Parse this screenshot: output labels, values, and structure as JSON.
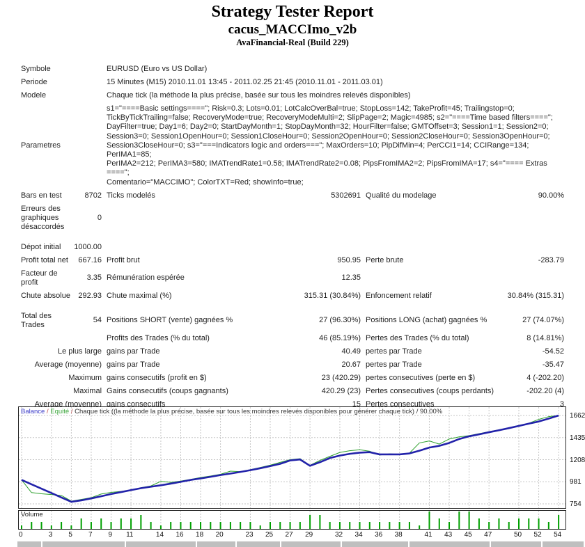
{
  "header": {
    "title": "Strategy Tester Report",
    "subtitle": "cacus_MACCImo_v2b",
    "build": "AvaFinancial-Real (Build 229)"
  },
  "stats": {
    "rows": [
      {
        "cells": [
          {
            "t": "Symbole",
            "cs": 2
          },
          {
            "t": "EURUSD (Euro vs US Dollar)",
            "cs": 4
          }
        ]
      },
      {
        "cells": [
          {
            "t": "Periode",
            "cs": 2
          },
          {
            "t": "15 Minutes (M15) 2010.11.01 13:45 - 2011.02.25 21:45 (2010.11.01 - 2011.03.01)",
            "cs": 4
          }
        ]
      },
      {
        "cells": [
          {
            "t": "Modele",
            "cs": 2
          },
          {
            "t": "Chaque tick (la méthode la plus précise, basée sur tous les moindres relevés disponibles)",
            "cs": 4
          }
        ]
      },
      {
        "cells": [
          {
            "t": "Parametres",
            "cs": 2
          },
          {
            "cs": 4,
            "lines": [
              "s1=\"====Basic settings====\"; Risk=0.3; Lots=0.01; LotCalcOverBal=true; StopLoss=142; TakeProfit=45; Trailingstop=0;",
              "TickByTickTrailing=false; RecoveryMode=true; RecoveryModeMulti=2; SlipPage=2; Magic=4985; s2=\"====Time based filters====\";",
              "DayFilter=true; Day1=6; Day2=0; StartDayMonth=1; StopDayMonth=32; HourFilter=false; GMTOffset=3; Session1=1; Session2=0;",
              "Session3=0; Session1OpenHour=0; Session1CloseHour=0; Session2OpenHour=0; Session2CloseHour=0; Session3OpenHour=0;",
              "Session3CloseHour=0; s3=\"===Indicators logic and orders===\"; MaxOrders=10; PipDifMin=4; PerCCI1=14; CCIRange=134; PerIMA1=85;",
              "PerIMA2=212; PerIMA3=580; IMATrendRate1=0.58; IMATrendRate2=0.08; PipsFromIMA2=2; PipsFromIMA=17; s4=\"==== Extras ====\";",
              "Comentario=\"MACCIMO\"; ColorTXT=Red; showInfo=true;"
            ]
          }
        ]
      },
      {
        "cells": [
          {
            "t": "Bars en test"
          },
          {
            "t": "8702",
            "r": 1
          },
          {
            "t": "Ticks modelés"
          },
          {
            "t": "5302691",
            "r": 1
          },
          {
            "t": "Qualité du modelage"
          },
          {
            "t": "90.00%",
            "r": 1
          }
        ]
      },
      {
        "cells": [
          {
            "t": "Erreurs des graphiques désaccordés"
          },
          {
            "t": "0",
            "r": 1
          },
          {
            "t": "",
            "cs": 4
          }
        ]
      },
      {
        "gap": true
      },
      {
        "cells": [
          {
            "t": "Dépot initial"
          },
          {
            "t": "1000.00",
            "r": 1
          },
          {
            "t": "",
            "cs": 4
          }
        ]
      },
      {
        "cells": [
          {
            "t": "Profit total net"
          },
          {
            "t": "667.16",
            "r": 1
          },
          {
            "t": "Profit brut"
          },
          {
            "t": "950.95",
            "r": 1
          },
          {
            "t": "Perte brute"
          },
          {
            "t": "-283.79",
            "r": 1
          }
        ]
      },
      {
        "cells": [
          {
            "t": "Facteur de profit"
          },
          {
            "t": "3.35",
            "r": 1
          },
          {
            "t": "Rémunération espérée"
          },
          {
            "t": "12.35",
            "r": 1
          },
          {
            "t": "",
            "cs": 2
          }
        ]
      },
      {
        "cells": [
          {
            "t": "Chute absolue"
          },
          {
            "t": "292.93",
            "r": 1
          },
          {
            "t": "Chute maximal (%)"
          },
          {
            "t": "315.31 (30.84%)",
            "r": 1
          },
          {
            "t": "Enfoncement relatif"
          },
          {
            "t": "30.84% (315.31)",
            "r": 1
          }
        ]
      },
      {
        "gap": true
      },
      {
        "cells": [
          {
            "t": "Total des Trades"
          },
          {
            "t": "54",
            "r": 1
          },
          {
            "t": "Positions SHORT (vente) gagnées %"
          },
          {
            "t": "27 (96.30%)",
            "r": 1
          },
          {
            "t": "Positions LONG (achat) gagnées %"
          },
          {
            "t": "27 (74.07%)",
            "r": 1
          }
        ]
      },
      {
        "cells": [
          {
            "t": "",
            "cs": 2
          },
          {
            "t": "Profits des Trades (% du total)"
          },
          {
            "t": "46 (85.19%)",
            "r": 1
          },
          {
            "t": "Pertes des Trades (% du total)"
          },
          {
            "t": "8 (14.81%)",
            "r": 1
          }
        ]
      },
      {
        "cells": [
          {
            "t": "Le plus large",
            "cs": 2,
            "r": 1
          },
          {
            "t": "gains par Trade"
          },
          {
            "t": "40.49",
            "r": 1
          },
          {
            "t": "pertes par Trade"
          },
          {
            "t": "-54.52",
            "r": 1
          }
        ]
      },
      {
        "cells": [
          {
            "t": "Average (moyenne)",
            "cs": 2,
            "r": 1
          },
          {
            "t": "gains par Trade"
          },
          {
            "t": "20.67",
            "r": 1
          },
          {
            "t": "pertes par Trade"
          },
          {
            "t": "-35.47",
            "r": 1
          }
        ]
      },
      {
        "cells": [
          {
            "t": "Maximum",
            "cs": 2,
            "r": 1
          },
          {
            "t": "gains consecutifs (profit en $)"
          },
          {
            "t": "23 (420.29)",
            "r": 1
          },
          {
            "t": "pertes consecutives (perte en $)"
          },
          {
            "t": "4 (-202.20)",
            "r": 1
          }
        ]
      },
      {
        "cells": [
          {
            "t": "Maximal",
            "cs": 2,
            "r": 1
          },
          {
            "t": "Gains consecutifs (coups gagnants)"
          },
          {
            "t": "420.29 (23)",
            "r": 1
          },
          {
            "t": "Pertes consecutives (coups perdants)"
          },
          {
            "t": "-202.20 (4)",
            "r": 1
          }
        ]
      },
      {
        "cells": [
          {
            "t": "Average (moyenne)",
            "cs": 2,
            "r": 1
          },
          {
            "t": "gains consecutifs"
          },
          {
            "t": "15",
            "r": 1
          },
          {
            "t": "Pertes consecutives"
          },
          {
            "t": "3",
            "r": 1
          }
        ]
      }
    ]
  },
  "chart_data": {
    "type": "line",
    "legend_segments": [
      {
        "t": "Balance",
        "c": "#3939c7"
      },
      {
        "t": " / ",
        "c": "#c05050"
      },
      {
        "t": "Equité",
        "c": "#3aa53a"
      },
      {
        "t": " / ",
        "c": "#c05050"
      },
      {
        "t": "Chaque tick ((la méthode la plus précise, basée sur tous les moindres relevés disponibles pour générer chaque tick) / 90.00%",
        "c": "#333333"
      }
    ],
    "ylim": [
      754,
      1662
    ],
    "y_ticks": [
      1662,
      1435,
      1208,
      981,
      754
    ],
    "x_ticks": [
      0,
      3,
      5,
      7,
      9,
      11,
      14,
      16,
      18,
      20,
      23,
      25,
      27,
      29,
      32,
      34,
      36,
      38,
      41,
      43,
      45,
      47,
      50,
      52,
      54
    ],
    "grid": true,
    "series": [
      {
        "name": "Balance",
        "color": "#2222aa",
        "width": 2.6,
        "values": [
          1000,
          955,
          910,
          865,
          820,
          775,
          790,
          810,
          832,
          855,
          875,
          895,
          915,
          930,
          945,
          962,
          980,
          1000,
          1015,
          1032,
          1050,
          1065,
          1082,
          1100,
          1120,
          1142,
          1165,
          1200,
          1210,
          1145,
          1182,
          1225,
          1250,
          1268,
          1280,
          1285,
          1262,
          1262,
          1262,
          1272,
          1300,
          1332,
          1350,
          1380,
          1420,
          1448,
          1468,
          1490,
          1510,
          1532,
          1555,
          1578,
          1600,
          1630,
          1662
        ]
      },
      {
        "name": "Equité",
        "color": "#2da02d",
        "width": 1,
        "values": [
          1000,
          870,
          858,
          850,
          840,
          782,
          800,
          818,
          855,
          872,
          882,
          895,
          920,
          938,
          985,
          975,
          988,
          1005,
          1025,
          1040,
          1058,
          1090,
          1085,
          1105,
          1128,
          1152,
          1180,
          1208,
          1218,
          1150,
          1200,
          1242,
          1282,
          1300,
          1310,
          1295,
          1255,
          1268,
          1262,
          1275,
          1380,
          1400,
          1368,
          1420,
          1442,
          1455,
          1475,
          1495,
          1515,
          1535,
          1560,
          1582,
          1622,
          1650,
          1662
        ]
      }
    ],
    "volume": {
      "label": "Volume",
      "color": "#00a000",
      "values": [
        1,
        2,
        2,
        1,
        2,
        1,
        3,
        2,
        3,
        2,
        3,
        3,
        4,
        2,
        1,
        2,
        2,
        2,
        2,
        2,
        2,
        2,
        2,
        2,
        1,
        2,
        2,
        2,
        2,
        4,
        4,
        2,
        2,
        2,
        2,
        2,
        2,
        2,
        2,
        2,
        1,
        5,
        3,
        2,
        5,
        5,
        3,
        2,
        3,
        2,
        3,
        3,
        3,
        2,
        4
      ]
    }
  }
}
